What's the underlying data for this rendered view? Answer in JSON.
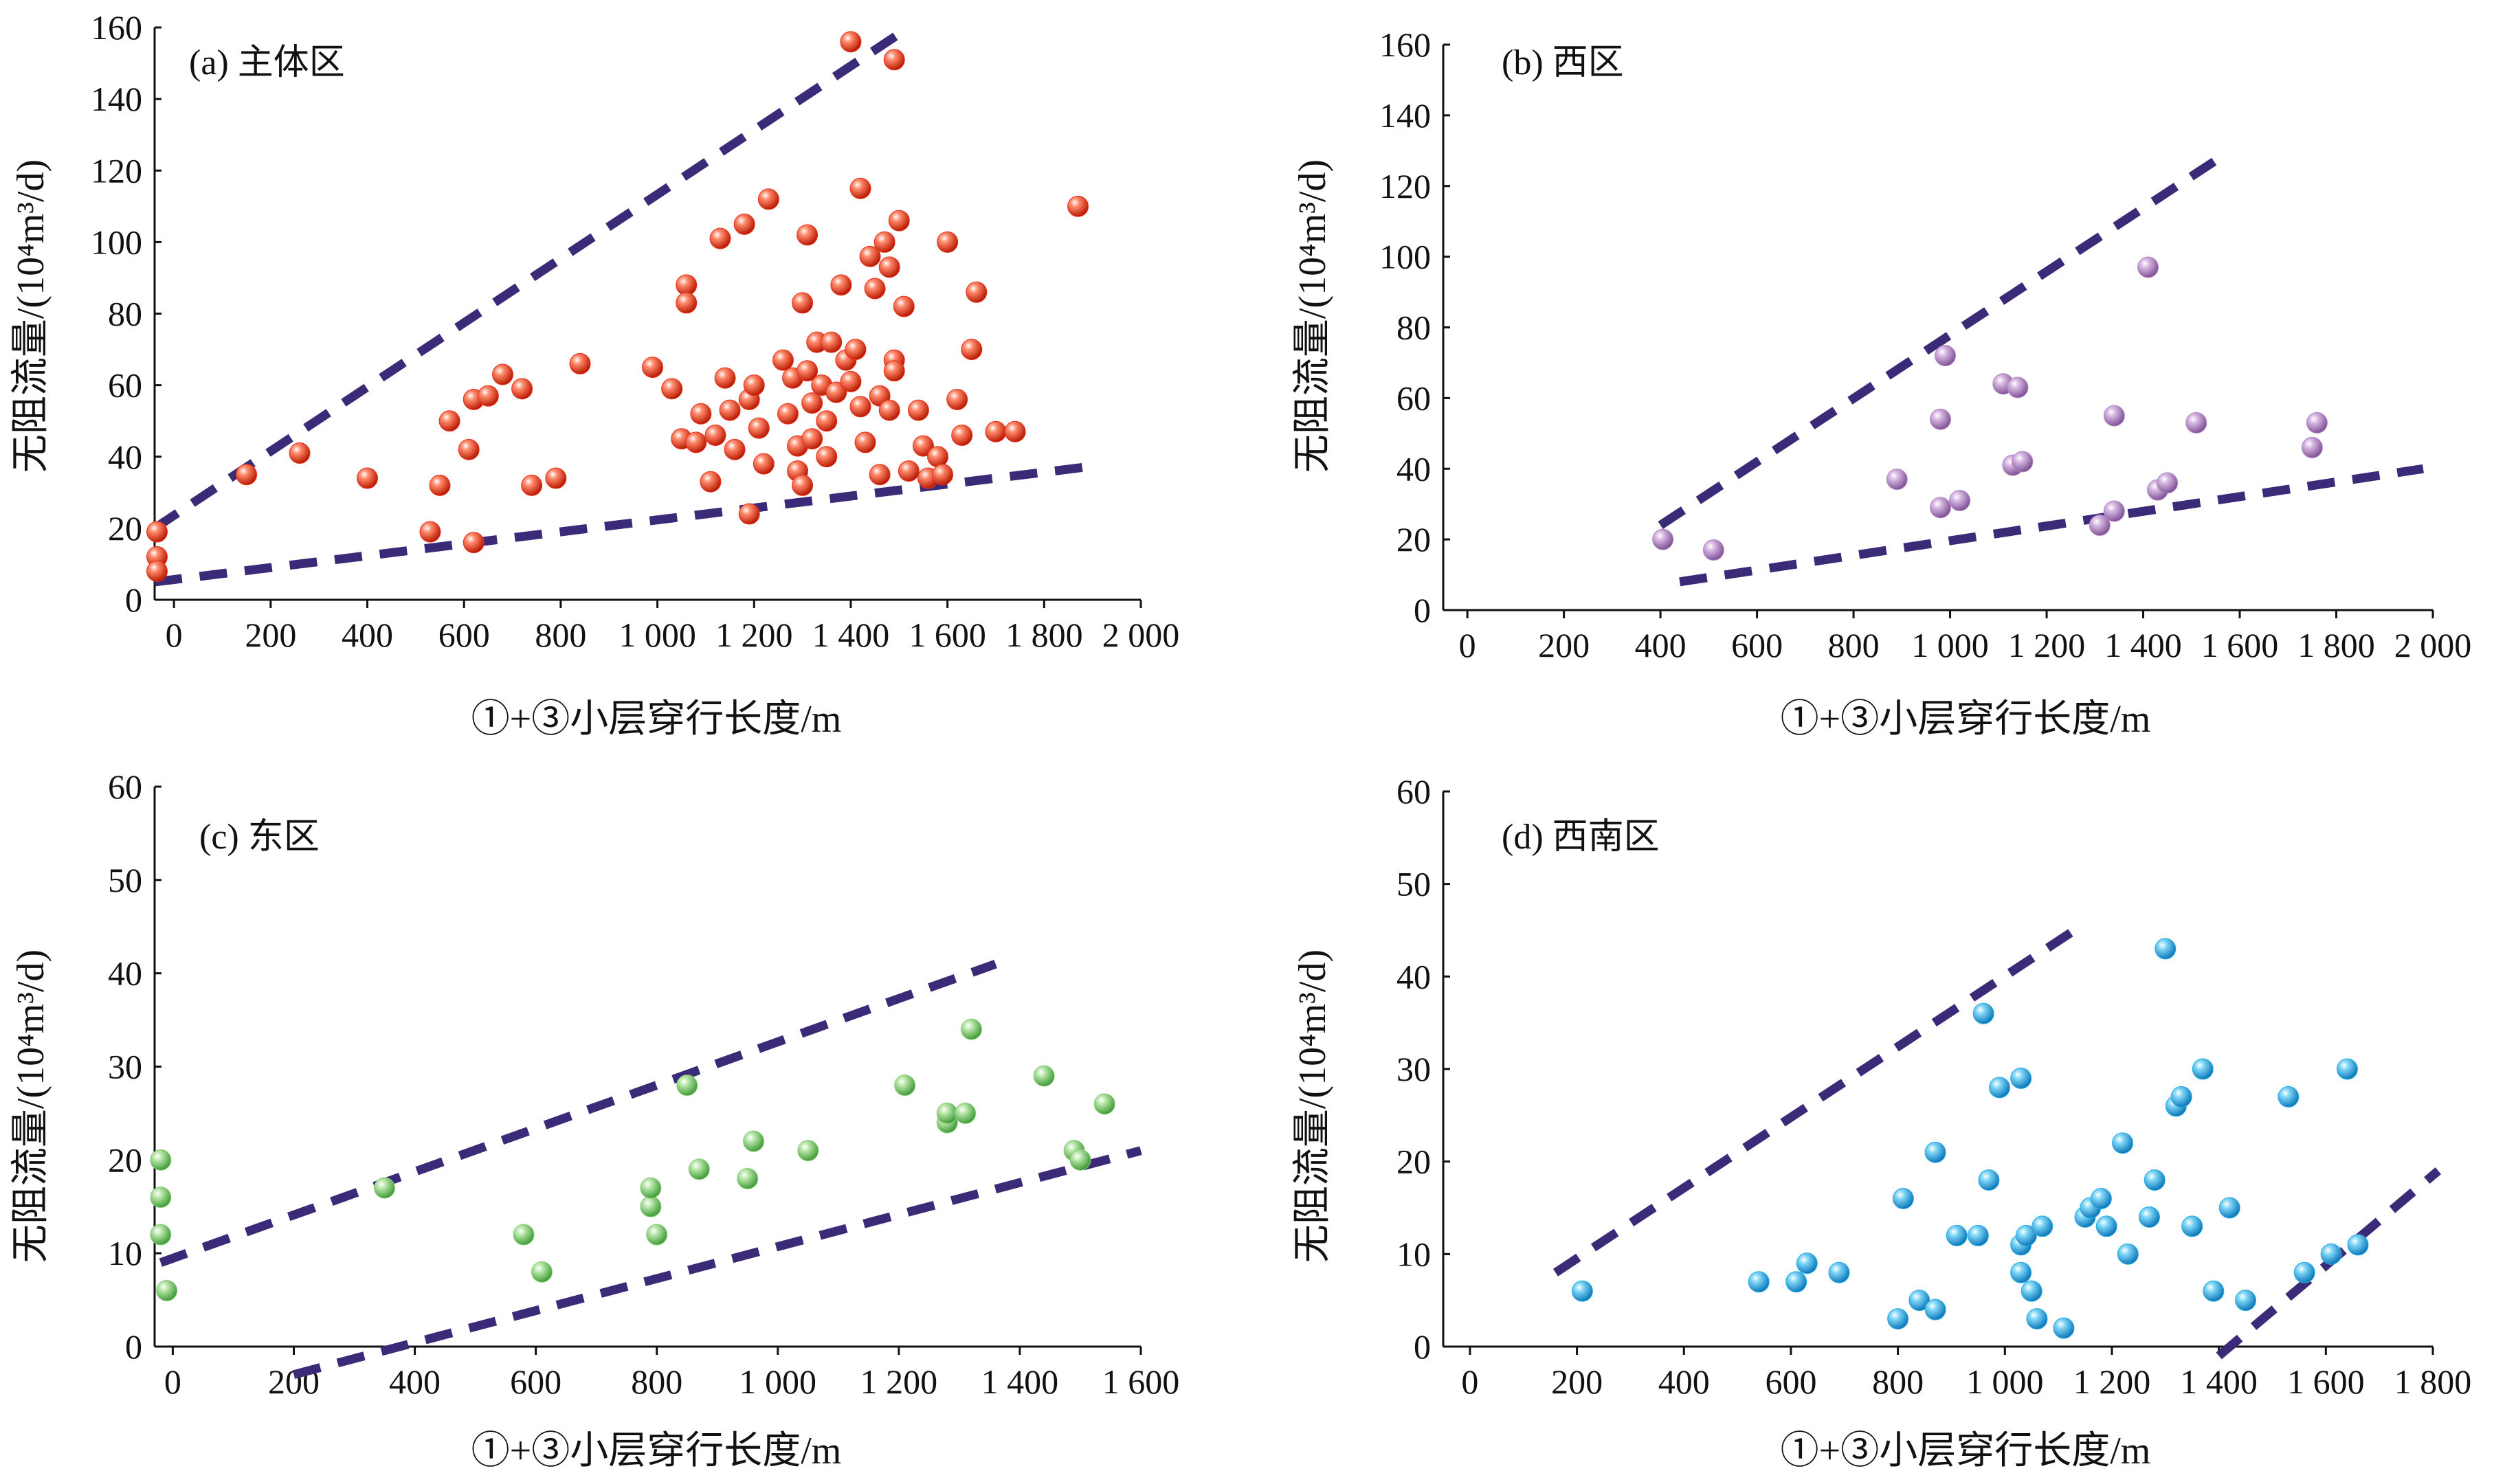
{
  "chart_data": [
    {
      "type": "scatter",
      "title": "(a) 主体区",
      "xlabel": "①+③小层穿行长度/m",
      "ylabel": "无阻流量/(10⁴m³/d)",
      "xlim": [
        -40,
        2000
      ],
      "ylim": [
        0,
        160
      ],
      "xticks": [
        0,
        200,
        400,
        600,
        800,
        1000,
        1200,
        1400,
        1600,
        1800,
        2000
      ],
      "xtick_labels": [
        "0",
        "200",
        "400",
        "600",
        "800",
        "1 000",
        "1 200",
        "1 400",
        "1 600",
        "1 800",
        "2 000"
      ],
      "yticks": [
        0,
        20,
        40,
        60,
        80,
        100,
        120,
        140,
        160
      ],
      "ytick_labels": [
        "0",
        "20",
        "40",
        "60",
        "80",
        "100",
        "120",
        "140",
        "160"
      ],
      "color": "#e8321f",
      "points": [
        [
          -35,
          19
        ],
        [
          -35,
          12
        ],
        [
          -35,
          8
        ],
        [
          150,
          35
        ],
        [
          260,
          41
        ],
        [
          400,
          34
        ],
        [
          530,
          19
        ],
        [
          550,
          32
        ],
        [
          570,
          50
        ],
        [
          610,
          42
        ],
        [
          620,
          56
        ],
        [
          650,
          57
        ],
        [
          620,
          16
        ],
        [
          680,
          63
        ],
        [
          720,
          59
        ],
        [
          740,
          32
        ],
        [
          790,
          34
        ],
        [
          840,
          66
        ],
        [
          990,
          65
        ],
        [
          1030,
          59
        ],
        [
          1050,
          45
        ],
        [
          1060,
          88
        ],
        [
          1060,
          83
        ],
        [
          1080,
          44
        ],
        [
          1090,
          52
        ],
        [
          1110,
          33
        ],
        [
          1120,
          46
        ],
        [
          1130,
          101
        ],
        [
          1140,
          62
        ],
        [
          1150,
          53
        ],
        [
          1160,
          42
        ],
        [
          1180,
          105
        ],
        [
          1190,
          56
        ],
        [
          1200,
          60
        ],
        [
          1210,
          48
        ],
        [
          1220,
          38
        ],
        [
          1190,
          24
        ],
        [
          1230,
          112
        ],
        [
          1260,
          67
        ],
        [
          1270,
          52
        ],
        [
          1280,
          62
        ],
        [
          1290,
          43
        ],
        [
          1290,
          36
        ],
        [
          1300,
          32
        ],
        [
          1300,
          83
        ],
        [
          1310,
          102
        ],
        [
          1310,
          64
        ],
        [
          1320,
          55
        ],
        [
          1320,
          45
        ],
        [
          1330,
          72
        ],
        [
          1340,
          60
        ],
        [
          1350,
          50
        ],
        [
          1350,
          40
        ],
        [
          1360,
          72
        ],
        [
          1370,
          58
        ],
        [
          1380,
          88
        ],
        [
          1390,
          67
        ],
        [
          1400,
          61
        ],
        [
          1410,
          70
        ],
        [
          1420,
          54
        ],
        [
          1420,
          115
        ],
        [
          1430,
          44
        ],
        [
          1440,
          96
        ],
        [
          1450,
          87
        ],
        [
          1460,
          57
        ],
        [
          1460,
          35
        ],
        [
          1470,
          100
        ],
        [
          1480,
          53
        ],
        [
          1480,
          93
        ],
        [
          1490,
          67
        ],
        [
          1490,
          64
        ],
        [
          1500,
          106
        ],
        [
          1510,
          82
        ],
        [
          1520,
          36
        ],
        [
          1540,
          53
        ],
        [
          1550,
          43
        ],
        [
          1560,
          34
        ],
        [
          1580,
          40
        ],
        [
          1590,
          35
        ],
        [
          1600,
          100
        ],
        [
          1620,
          56
        ],
        [
          1630,
          46
        ],
        [
          1650,
          70
        ],
        [
          1660,
          86
        ],
        [
          1700,
          47
        ],
        [
          1740,
          47
        ],
        [
          1870,
          110
        ],
        [
          1400,
          156
        ],
        [
          1490,
          151
        ]
      ],
      "trend_lines": [
        {
          "from": [
            -40,
            20
          ],
          "to": [
            1520,
            160
          ]
        },
        {
          "from": [
            -40,
            5
          ],
          "to": [
            1880,
            37
          ]
        }
      ]
    },
    {
      "type": "scatter",
      "title": "(b) 西区",
      "xlabel": "①+③小层穿行长度/m",
      "ylabel": "无阻流量/(10⁴m³/d)",
      "xlim": [
        -50,
        2000
      ],
      "ylim": [
        0,
        160
      ],
      "xticks": [
        0,
        200,
        400,
        600,
        800,
        1000,
        1200,
        1400,
        1600,
        1800,
        2000
      ],
      "xtick_labels": [
        "0",
        "200",
        "400",
        "600",
        "800",
        "1 000",
        "1 200",
        "1 400",
        "1 600",
        "1 800",
        "2 000"
      ],
      "yticks": [
        0,
        20,
        40,
        60,
        80,
        100,
        120,
        140,
        160
      ],
      "ytick_labels": [
        "0",
        "20",
        "40",
        "60",
        "80",
        "100",
        "120",
        "140",
        "160"
      ],
      "color": "#b58bc4",
      "points": [
        [
          405,
          20
        ],
        [
          510,
          17
        ],
        [
          890,
          37
        ],
        [
          980,
          29
        ],
        [
          980,
          54
        ],
        [
          990,
          72
        ],
        [
          1020,
          31
        ],
        [
          1110,
          64
        ],
        [
          1130,
          41
        ],
        [
          1140,
          63
        ],
        [
          1150,
          42
        ],
        [
          1310,
          24
        ],
        [
          1340,
          55
        ],
        [
          1340,
          28
        ],
        [
          1410,
          97
        ],
        [
          1430,
          34
        ],
        [
          1450,
          36
        ],
        [
          1510,
          53
        ],
        [
          1750,
          46
        ],
        [
          1760,
          53
        ]
      ],
      "trend_lines": [
        {
          "from": [
            400,
            24
          ],
          "to": [
            1570,
            129
          ]
        },
        {
          "from": [
            440,
            8
          ],
          "to": [
            1980,
            40
          ]
        }
      ]
    },
    {
      "type": "scatter",
      "title": "(c) 东区",
      "xlabel": "①+③小层穿行长度/m",
      "ylabel": "无阻流量/(10⁴m³/d)",
      "xlim": [
        -30,
        1600
      ],
      "ylim": [
        0,
        60
      ],
      "xticks": [
        0,
        200,
        400,
        600,
        800,
        1000,
        1200,
        1400,
        1600
      ],
      "xtick_labels": [
        "0",
        "200",
        "400",
        "600",
        "800",
        "1 000",
        "1 200",
        "1 400",
        "1 600"
      ],
      "yticks": [
        0,
        10,
        20,
        30,
        40,
        50,
        60
      ],
      "ytick_labels": [
        "0",
        "10",
        "20",
        "30",
        "40",
        "50",
        "60"
      ],
      "color": "#8ccf7e",
      "points": [
        [
          -20,
          20
        ],
        [
          -20,
          16
        ],
        [
          -20,
          12
        ],
        [
          -10,
          6
        ],
        [
          350,
          17
        ],
        [
          580,
          12
        ],
        [
          610,
          8
        ],
        [
          790,
          15
        ],
        [
          790,
          17
        ],
        [
          800,
          12
        ],
        [
          850,
          28
        ],
        [
          870,
          19
        ],
        [
          950,
          18
        ],
        [
          960,
          22
        ],
        [
          1050,
          21
        ],
        [
          1210,
          28
        ],
        [
          1280,
          24
        ],
        [
          1280,
          25
        ],
        [
          1310,
          25
        ],
        [
          1320,
          34
        ],
        [
          1440,
          29
        ],
        [
          1490,
          21
        ],
        [
          1500,
          20
        ],
        [
          1540,
          26
        ]
      ],
      "trend_lines": [
        {
          "from": [
            -20,
            9
          ],
          "to": [
            1360,
            41
          ]
        },
        {
          "from": [
            200,
            -3
          ],
          "to": [
            1600,
            21
          ]
        }
      ]
    },
    {
      "type": "scatter",
      "title": "(d) 西南区",
      "xlabel": "①+③小层穿行长度/m",
      "ylabel": "无阻流量/(10⁴m³/d)",
      "xlim": [
        -50,
        1800
      ],
      "ylim": [
        0,
        60
      ],
      "xticks": [
        0,
        200,
        400,
        600,
        800,
        1000,
        1200,
        1400,
        1600,
        1800
      ],
      "xtick_labels": [
        "0",
        "200",
        "400",
        "600",
        "800",
        "1 000",
        "1 200",
        "1 400",
        "1 600",
        "1 800"
      ],
      "yticks": [
        0,
        10,
        20,
        30,
        40,
        50,
        60
      ],
      "ytick_labels": [
        "0",
        "10",
        "20",
        "30",
        "40",
        "50",
        "60"
      ],
      "color": "#29aee6",
      "points": [
        [
          210,
          6
        ],
        [
          540,
          7
        ],
        [
          610,
          7
        ],
        [
          630,
          9
        ],
        [
          690,
          8
        ],
        [
          800,
          3
        ],
        [
          810,
          16
        ],
        [
          840,
          5
        ],
        [
          870,
          4
        ],
        [
          870,
          21
        ],
        [
          910,
          12
        ],
        [
          950,
          12
        ],
        [
          960,
          36
        ],
        [
          970,
          18
        ],
        [
          990,
          28
        ],
        [
          1030,
          29
        ],
        [
          1030,
          8
        ],
        [
          1030,
          11
        ],
        [
          1040,
          12
        ],
        [
          1050,
          6
        ],
        [
          1060,
          3
        ],
        [
          1070,
          13
        ],
        [
          1110,
          2
        ],
        [
          1150,
          14
        ],
        [
          1160,
          15
        ],
        [
          1180,
          16
        ],
        [
          1190,
          13
        ],
        [
          1220,
          22
        ],
        [
          1230,
          10
        ],
        [
          1270,
          14
        ],
        [
          1280,
          18
        ],
        [
          1300,
          43
        ],
        [
          1320,
          26
        ],
        [
          1330,
          27
        ],
        [
          1350,
          13
        ],
        [
          1370,
          30
        ],
        [
          1390,
          6
        ],
        [
          1420,
          15
        ],
        [
          1450,
          5
        ],
        [
          1530,
          27
        ],
        [
          1560,
          8
        ],
        [
          1610,
          10
        ],
        [
          1640,
          30
        ],
        [
          1660,
          11
        ]
      ],
      "trend_lines": [
        {
          "from": [
            160,
            8
          ],
          "to": [
            1130,
            45
          ]
        },
        {
          "from": [
            1400,
            -1
          ],
          "to": [
            1810,
            19
          ]
        }
      ]
    }
  ]
}
